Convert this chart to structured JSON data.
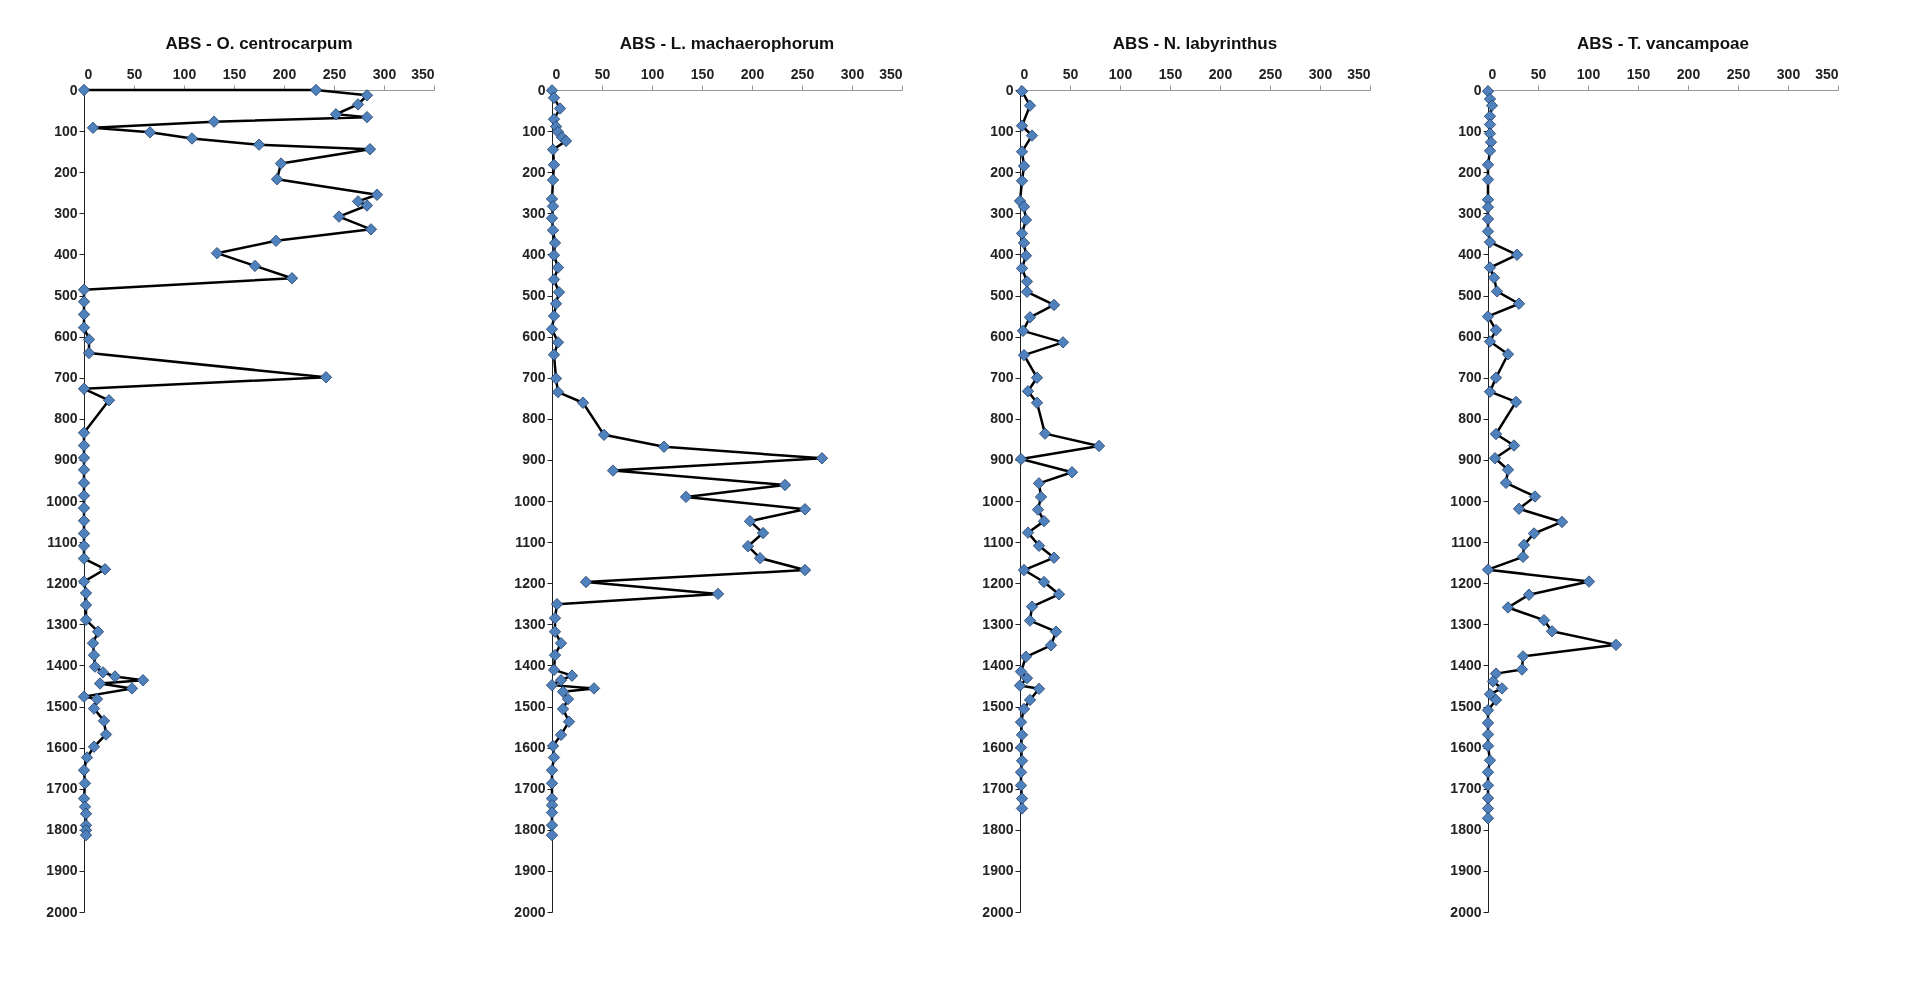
{
  "chart_data": [
    {
      "type": "line",
      "title": "ABS - O. centrocarpum",
      "marker": "diamond",
      "line_style": "solid",
      "xlim": [
        0,
        350
      ],
      "xticks": [
        0,
        50,
        100,
        150,
        200,
        250,
        300,
        350
      ],
      "ylim": [
        2000,
        0
      ],
      "yticks": [
        0,
        100,
        200,
        300,
        400,
        500,
        600,
        700,
        800,
        900,
        1000,
        1100,
        1200,
        1300,
        1400,
        1500,
        1600,
        1700,
        1800,
        1900,
        2000
      ],
      "series": [
        {
          "color": "#4f81bd",
          "x": [
            0,
            232,
            283,
            274,
            252,
            283,
            130,
            9,
            66,
            108,
            175,
            286,
            197,
            193,
            293,
            274,
            283,
            255,
            287,
            192,
            133,
            171,
            208,
            0,
            0,
            0,
            0,
            5,
            5,
            242,
            0,
            25,
            0,
            0,
            0,
            0,
            0,
            0,
            0,
            0,
            0,
            0,
            0,
            21,
            0,
            2,
            2,
            2,
            14,
            9,
            10,
            11,
            19,
            31,
            59,
            16,
            48,
            0,
            13,
            10,
            20,
            22,
            10,
            3,
            0,
            1,
            0,
            1,
            2,
            2,
            2,
            2
          ],
          "values": [
            0,
            0,
            13,
            35,
            59,
            66,
            77,
            92,
            103,
            118,
            133,
            144,
            179,
            217,
            255,
            271,
            281,
            308,
            339,
            367,
            397,
            428,
            458,
            486,
            515,
            546,
            578,
            607,
            640,
            699,
            727,
            755,
            834,
            865,
            895,
            924,
            956,
            987,
            1017,
            1048,
            1079,
            1109,
            1140,
            1166,
            1196,
            1224,
            1253,
            1289,
            1318,
            1346,
            1375,
            1403,
            1417,
            1427,
            1436,
            1444,
            1456,
            1476,
            1482,
            1505,
            1535,
            1568,
            1598,
            1624,
            1655,
            1687,
            1724,
            1744,
            1761,
            1789,
            1801,
            1813
          ]
        }
      ]
    },
    {
      "type": "line",
      "title": "ABS - L. machaerophorum",
      "marker": "diamond",
      "line_style": "solid",
      "xlim": [
        0,
        350
      ],
      "xticks": [
        0,
        50,
        100,
        150,
        200,
        250,
        300,
        350
      ],
      "ylim": [
        2000,
        0
      ],
      "yticks": [
        0,
        100,
        200,
        300,
        400,
        500,
        600,
        700,
        800,
        900,
        1000,
        1100,
        1200,
        1300,
        1400,
        1500,
        1600,
        1700,
        1800,
        1900,
        2000
      ],
      "series": [
        {
          "color": "#4f81bd",
          "x": [
            0,
            2,
            8,
            2,
            4,
            6,
            10,
            14,
            1,
            2,
            1,
            0,
            1,
            0,
            1,
            3,
            2,
            6,
            2,
            7,
            4,
            2,
            0,
            6,
            2,
            4,
            6,
            31,
            52,
            112,
            270,
            61,
            233,
            134,
            253,
            198,
            211,
            196,
            208,
            253,
            34,
            166,
            5,
            3,
            3,
            9,
            3,
            2,
            20,
            9,
            0,
            42,
            11,
            16,
            11,
            17,
            9,
            1,
            2,
            0,
            0,
            0,
            0,
            0,
            0,
            0
          ],
          "values": [
            1,
            19,
            45,
            71,
            89,
            102,
            115,
            124,
            145,
            182,
            219,
            265,
            283,
            312,
            341,
            372,
            402,
            432,
            461,
            492,
            520,
            550,
            582,
            614,
            644,
            702,
            735,
            761,
            839,
            868,
            896,
            926,
            961,
            990,
            1020,
            1049,
            1078,
            1110,
            1139,
            1168,
            1197,
            1226,
            1251,
            1285,
            1318,
            1346,
            1375,
            1411,
            1425,
            1436,
            1448,
            1456,
            1464,
            1482,
            1506,
            1537,
            1569,
            1596,
            1624,
            1655,
            1687,
            1724,
            1740,
            1758,
            1789,
            1813
          ]
        }
      ]
    },
    {
      "type": "line",
      "title": "ABS - N. labyrinthus",
      "marker": "diamond",
      "line_style": "solid",
      "xlim": [
        0,
        350
      ],
      "xticks": [
        0,
        50,
        100,
        150,
        200,
        250,
        300,
        350
      ],
      "ylim": [
        2000,
        0
      ],
      "yticks": [
        0,
        100,
        200,
        300,
        400,
        500,
        600,
        700,
        800,
        900,
        1000,
        1100,
        1200,
        1300,
        1400,
        1500,
        1600,
        1700,
        1800,
        1900,
        2000
      ],
      "series": [
        {
          "color": "#4f81bd",
          "x": [
            2,
            10,
            2,
            12,
            2,
            4,
            2,
            0,
            4,
            6,
            2,
            4,
            6,
            2,
            7,
            7,
            34,
            10,
            3,
            43,
            4,
            17,
            8,
            17,
            25,
            79,
            1,
            52,
            19,
            21,
            18,
            24,
            8,
            19,
            34,
            4,
            24,
            39,
            12,
            10,
            36,
            31,
            6,
            1,
            7,
            0,
            19,
            10,
            4,
            1,
            2,
            1,
            2,
            1,
            1,
            2,
            2
          ],
          "values": [
            3,
            38,
            87,
            111,
            150,
            185,
            221,
            270,
            284,
            316,
            349,
            372,
            403,
            434,
            466,
            491,
            523,
            553,
            586,
            614,
            645,
            700,
            733,
            761,
            836,
            866,
            898,
            930,
            957,
            990,
            1021,
            1049,
            1077,
            1109,
            1138,
            1168,
            1197,
            1227,
            1257,
            1291,
            1318,
            1351,
            1379,
            1415,
            1431,
            1449,
            1457,
            1484,
            1506,
            1538,
            1569,
            1600,
            1632,
            1660,
            1692,
            1724,
            1748
          ]
        }
      ]
    },
    {
      "type": "line",
      "title": "ABS - T. vancampoae",
      "marker": "diamond",
      "line_style": "solid",
      "xlim": [
        0,
        350
      ],
      "xticks": [
        0,
        50,
        100,
        150,
        200,
        250,
        300,
        350
      ],
      "ylim": [
        2000,
        0
      ],
      "yticks": [
        0,
        100,
        200,
        300,
        400,
        500,
        600,
        700,
        800,
        900,
        1000,
        1100,
        1200,
        1300,
        1400,
        1500,
        1600,
        1700,
        1800,
        1900,
        2000
      ],
      "series": [
        {
          "color": "#4f81bd",
          "x": [
            0,
            2,
            4,
            2,
            2,
            2,
            3,
            2,
            0,
            0,
            0,
            0,
            0,
            0,
            2,
            29,
            2,
            6,
            9,
            31,
            0,
            8,
            2,
            20,
            8,
            2,
            28,
            8,
            26,
            7,
            20,
            18,
            47,
            31,
            74,
            46,
            36,
            35,
            0,
            101,
            41,
            20,
            56,
            64,
            128,
            35,
            34,
            8,
            5,
            14,
            2,
            8,
            0,
            0,
            0,
            0,
            2,
            0,
            0,
            0,
            0,
            0
          ],
          "values": [
            3,
            22,
            38,
            64,
            84,
            106,
            127,
            148,
            182,
            218,
            267,
            285,
            314,
            344,
            370,
            401,
            432,
            457,
            490,
            520,
            551,
            584,
            612,
            643,
            700,
            734,
            759,
            837,
            865,
            896,
            924,
            956,
            989,
            1019,
            1051,
            1079,
            1107,
            1136,
            1167,
            1196,
            1228,
            1259,
            1290,
            1317,
            1350,
            1378,
            1410,
            1420,
            1439,
            1456,
            1470,
            1484,
            1509,
            1540,
            1568,
            1596,
            1631,
            1660,
            1692,
            1723,
            1748,
            1772
          ]
        }
      ]
    }
  ]
}
